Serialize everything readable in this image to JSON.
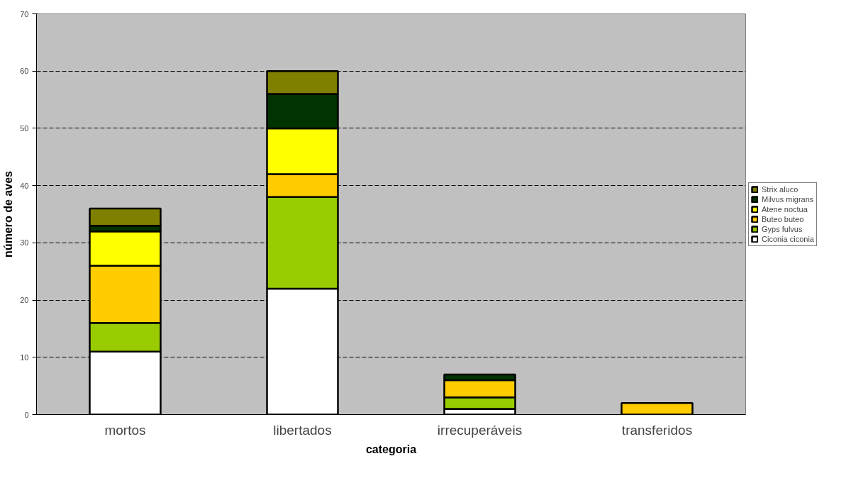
{
  "chart_data": {
    "type": "bar",
    "stacked": true,
    "xlabel": "categoria",
    "ylabel": "número de aves",
    "categories": [
      "mortos",
      "libertados",
      "irrecuperáveis",
      "transferidos"
    ],
    "series": [
      {
        "name": "Ciconia ciconia",
        "color": "#ffffff",
        "values": [
          11,
          22,
          1,
          null
        ]
      },
      {
        "name": "Gyps fulvus",
        "color": "#99cc00",
        "values": [
          5,
          16,
          2,
          null
        ]
      },
      {
        "name": "Buteo buteo",
        "color": "#ffcc00",
        "values": [
          10,
          4,
          3,
          2
        ]
      },
      {
        "name": "Atene noctua",
        "color": "#ffff00",
        "values": [
          6,
          8,
          null,
          null
        ]
      },
      {
        "name": "Milvus migrans",
        "color": "#003300",
        "values": [
          1,
          6,
          1,
          null
        ]
      },
      {
        "name": "Strix aluco",
        "color": "#808000",
        "values": [
          3,
          4,
          null,
          null
        ]
      }
    ],
    "ylim": [
      0,
      70
    ],
    "yticks": [
      0,
      10,
      20,
      30,
      40,
      50,
      60,
      70
    ],
    "grid": "y",
    "legend": "right"
  }
}
